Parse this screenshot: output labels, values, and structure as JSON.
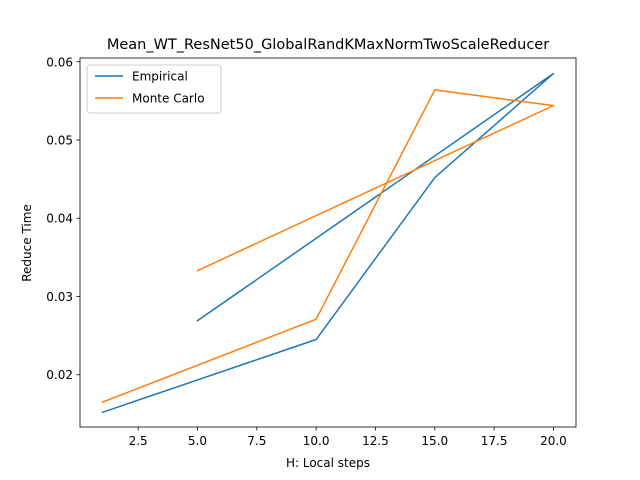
{
  "chart_data": {
    "type": "line",
    "title": "Mean_WT_ResNet50_GlobalRandKMaxNormTwoScaleReducer",
    "xlabel": "H: Local steps",
    "ylabel": "Reduce Time",
    "xlim": [
      0.05,
      20.95
    ],
    "ylim": [
      0.01332,
      0.06048
    ],
    "xticks": [
      2.5,
      5.0,
      7.5,
      10.0,
      12.5,
      15.0,
      17.5,
      20.0
    ],
    "xtick_labels": [
      "2.5",
      "5.0",
      "7.5",
      "10.0",
      "12.5",
      "15.0",
      "17.5",
      "20.0"
    ],
    "yticks": [
      0.02,
      0.03,
      0.04,
      0.05,
      0.06
    ],
    "ytick_labels": [
      "0.02",
      "0.03",
      "0.04",
      "0.05",
      "0.06"
    ],
    "grid": false,
    "legend_position": "upper-left",
    "series": [
      {
        "name": "Empirical",
        "color": "#1f77b4",
        "x": [
          1,
          10,
          15,
          20,
          5
        ],
        "y": [
          0.0152,
          0.0245,
          0.0452,
          0.0585,
          0.0269
        ]
      },
      {
        "name": "Monte Carlo",
        "color": "#ff7f0e",
        "x": [
          1,
          10,
          15,
          20,
          5
        ],
        "y": [
          0.0165,
          0.0271,
          0.0564,
          0.0544,
          0.0333
        ]
      }
    ]
  }
}
